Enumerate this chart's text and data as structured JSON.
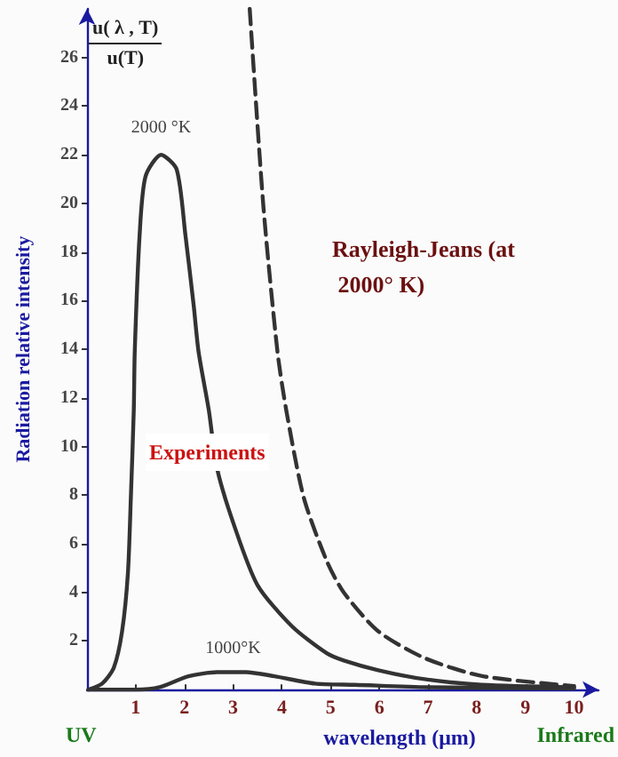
{
  "chart_data": {
    "type": "line",
    "xlabel": "wavelength (μm)",
    "ylabel": "Radiation relative intensity",
    "xlim": [
      0,
      10.5
    ],
    "ylim": [
      0,
      28
    ],
    "xticks": [
      1,
      2,
      3,
      4,
      5,
      6,
      7,
      8,
      9,
      10
    ],
    "yticks": [
      2,
      4,
      6,
      8,
      10,
      12,
      14,
      16,
      18,
      20,
      22,
      24,
      26
    ],
    "grid": false,
    "marker": "none",
    "line_style": "solid",
    "series": [
      {
        "color": "#333333",
        "x": [
          0.03,
          0.31,
          0.55,
          0.72,
          0.84,
          0.9,
          0.96,
          0.98,
          1.08,
          1.2,
          1.52,
          1.84,
          2.02,
          2.19,
          2.29,
          2.5,
          2.67,
          3.03,
          3.5,
          4.21,
          4.92,
          5.27,
          5.98,
          6.93,
          8.1,
          10
        ],
        "values": [
          0,
          0.25,
          0.9,
          2.4,
          4.8,
          7.9,
          11.5,
          13.9,
          18.7,
          21.1,
          22,
          21.4,
          18.7,
          15.8,
          13.9,
          11.5,
          9.1,
          6.7,
          4.3,
          2.6,
          1.5,
          1.2,
          0.8,
          0.43,
          0.2,
          0.1
        ]
      },
      {
        "color": "#333333",
        "x": [
          0.03,
          1.0,
          1.49,
          2.08,
          2.67,
          3.26,
          3.85,
          4.68,
          5.5,
          7,
          10
        ],
        "values": [
          0,
          0,
          0.1,
          0.55,
          0.72,
          0.72,
          0.55,
          0.25,
          0.2,
          0.1,
          0.05
        ]
      },
      {
        "color": "#333333",
        "line_style": "dashed",
        "x": [
          3.34,
          3.62,
          3.91,
          4.09,
          4.45,
          4.92,
          5.27,
          5.98,
          6.93,
          8.11,
          10
        ],
        "values": [
          28,
          19.9,
          13.9,
          11.5,
          7.9,
          5.3,
          4.0,
          2.4,
          1.3,
          0.56,
          0.15
        ]
      }
    ],
    "annotations": [
      "u( λ , T)",
      "u(T)",
      "Experiments",
      "UV",
      "Infrared",
      {
        "text": "2000 °K",
        "x": 1.52,
        "y": 22
      },
      {
        "text": "1000°K",
        "x": 3,
        "y": 0.72
      },
      "Rayleigh-Jeans (at 2000° K)"
    ]
  }
}
